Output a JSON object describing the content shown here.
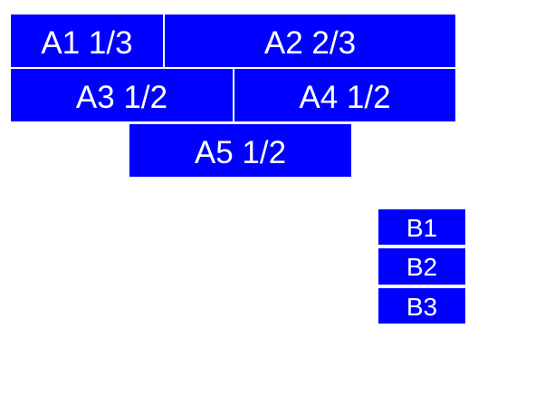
{
  "colors": {
    "block": "#0000ff",
    "text": "#ffffff",
    "background": "#ffffff"
  },
  "blocks": {
    "a1": {
      "label": "A1 1/3"
    },
    "a2": {
      "label": "A2 2/3"
    },
    "a3": {
      "label": "A3 1/2"
    },
    "a4": {
      "label": "A4 1/2"
    },
    "a5": {
      "label": "A5 1/2"
    },
    "b1": {
      "label": "B1"
    },
    "b2": {
      "label": "B2"
    },
    "b3": {
      "label": "B3"
    }
  }
}
